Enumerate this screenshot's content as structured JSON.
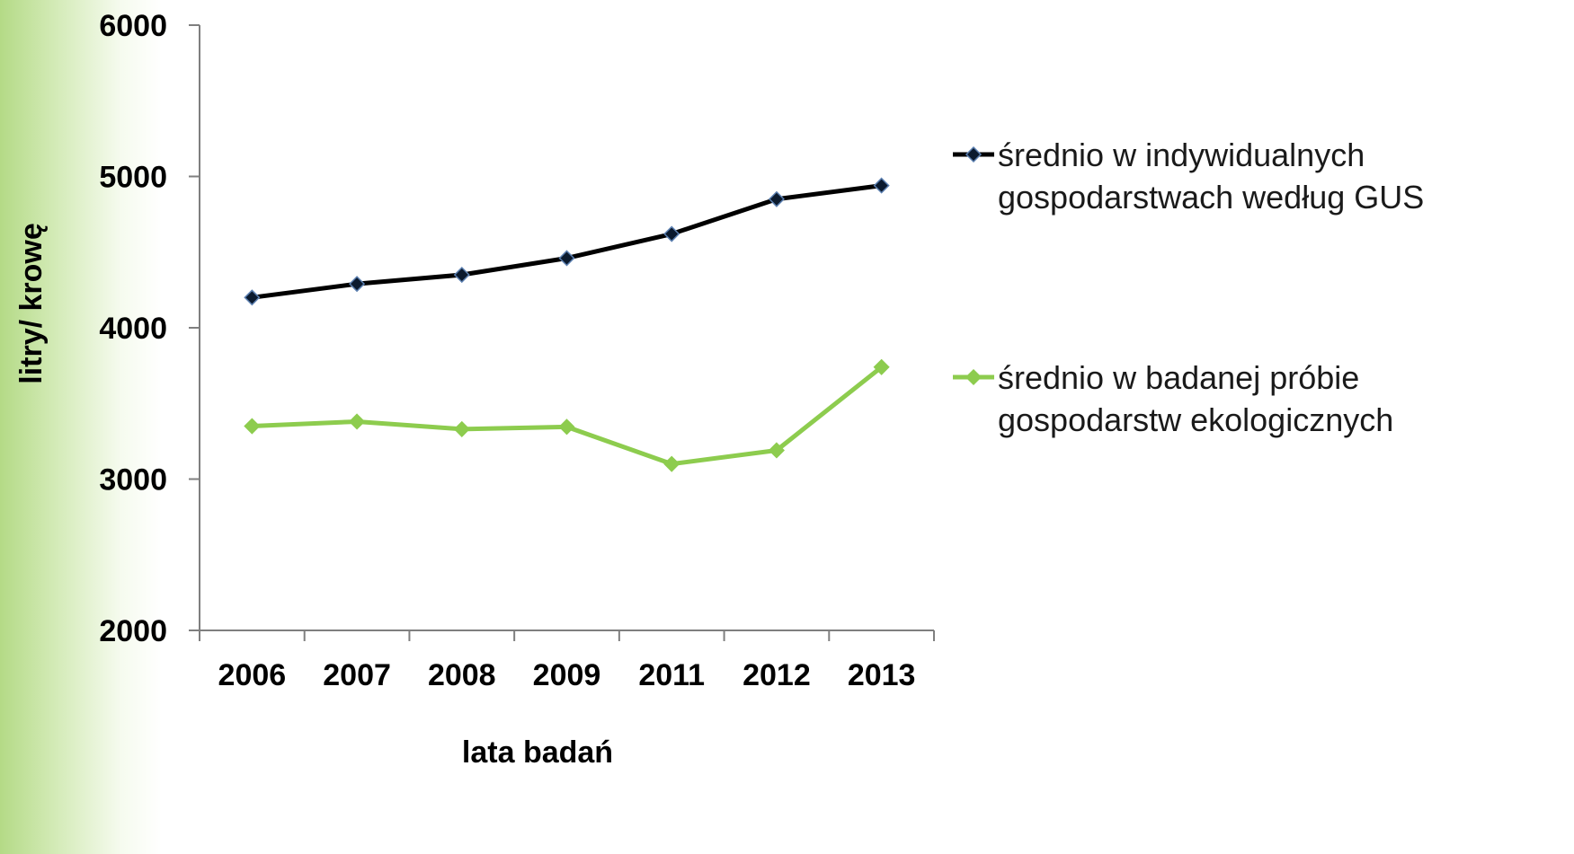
{
  "chart_data": {
    "type": "line",
    "categories": [
      "2006",
      "2007",
      "2008",
      "2009",
      "2011",
      "2012",
      "2013"
    ],
    "xlabel": "lata badań",
    "ylabel": "litry/ krowę",
    "ylim": [
      2000,
      6000
    ],
    "yticks": [
      2000,
      3000,
      4000,
      5000,
      6000
    ],
    "yticks_labels": [
      "2000",
      "3000",
      "4000",
      "5000",
      "6000"
    ],
    "grid": false,
    "legend_position": "right",
    "series": [
      {
        "name_lines": [
          "średnio w indywidualnych",
          "gospodarstwach według GUS"
        ],
        "color": "#000000",
        "marker_fill": "#0b1a2e",
        "marker_stroke": "#5b7fb0",
        "values": [
          4200,
          4290,
          4350,
          4460,
          4620,
          4850,
          4940
        ]
      },
      {
        "name_lines": [
          "średnio w badanej próbie",
          "gospodarstw ekologicznych"
        ],
        "color": "#8dcc4e",
        "marker_fill": "#8dcc4e",
        "marker_stroke": "#8dcc4e",
        "values": [
          3350,
          3380,
          3330,
          3345,
          3100,
          3190,
          3740
        ]
      }
    ]
  }
}
